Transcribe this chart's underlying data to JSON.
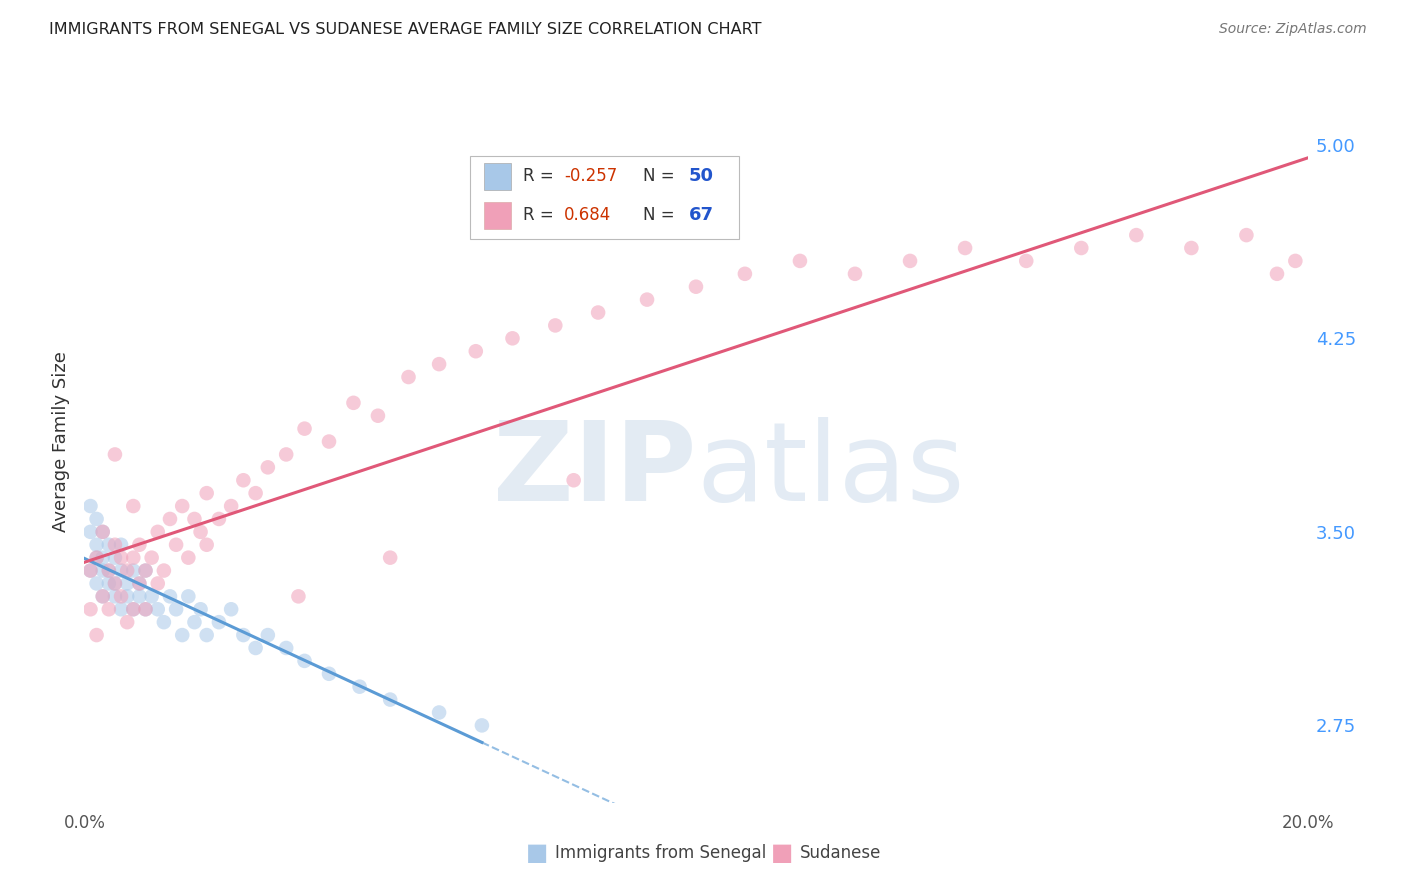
{
  "title": "IMMIGRANTS FROM SENEGAL VS SUDANESE AVERAGE FAMILY SIZE CORRELATION CHART",
  "source": "Source: ZipAtlas.com",
  "ylabel": "Average Family Size",
  "ytick_labels": [
    2.75,
    3.5,
    4.25,
    5.0
  ],
  "xlim": [
    0.0,
    0.2
  ],
  "ylim": [
    2.45,
    5.25
  ],
  "color_blue": "#a8c8e8",
  "color_pink": "#f0a0b8",
  "line_blue": "#5b9bd5",
  "line_pink": "#e05878",
  "background": "#ffffff",
  "grid_color": "#cccccc",
  "senegal_x": [
    0.001,
    0.001,
    0.001,
    0.002,
    0.002,
    0.002,
    0.002,
    0.003,
    0.003,
    0.003,
    0.003,
    0.004,
    0.004,
    0.004,
    0.005,
    0.005,
    0.005,
    0.006,
    0.006,
    0.006,
    0.007,
    0.007,
    0.008,
    0.008,
    0.009,
    0.009,
    0.01,
    0.01,
    0.011,
    0.012,
    0.013,
    0.014,
    0.015,
    0.016,
    0.017,
    0.018,
    0.019,
    0.02,
    0.022,
    0.024,
    0.026,
    0.028,
    0.03,
    0.033,
    0.036,
    0.04,
    0.045,
    0.05,
    0.058,
    0.065
  ],
  "senegal_y": [
    3.5,
    3.6,
    3.35,
    3.45,
    3.3,
    3.55,
    3.4,
    3.35,
    3.5,
    3.25,
    3.4,
    3.3,
    3.45,
    3.35,
    3.25,
    3.4,
    3.3,
    3.35,
    3.2,
    3.45,
    3.3,
    3.25,
    3.35,
    3.2,
    3.3,
    3.25,
    3.2,
    3.35,
    3.25,
    3.2,
    3.15,
    3.25,
    3.2,
    3.1,
    3.25,
    3.15,
    3.2,
    3.1,
    3.15,
    3.2,
    3.1,
    3.05,
    3.1,
    3.05,
    3.0,
    2.95,
    2.9,
    2.85,
    2.8,
    2.75
  ],
  "sudanese_x": [
    0.001,
    0.001,
    0.002,
    0.002,
    0.003,
    0.003,
    0.004,
    0.004,
    0.005,
    0.005,
    0.006,
    0.006,
    0.007,
    0.007,
    0.008,
    0.008,
    0.009,
    0.009,
    0.01,
    0.01,
    0.011,
    0.012,
    0.013,
    0.014,
    0.015,
    0.016,
    0.017,
    0.018,
    0.019,
    0.02,
    0.022,
    0.024,
    0.026,
    0.028,
    0.03,
    0.033,
    0.036,
    0.04,
    0.044,
    0.048,
    0.053,
    0.058,
    0.064,
    0.07,
    0.077,
    0.084,
    0.092,
    0.1,
    0.108,
    0.117,
    0.126,
    0.135,
    0.144,
    0.154,
    0.163,
    0.172,
    0.181,
    0.19,
    0.195,
    0.198,
    0.005,
    0.008,
    0.012,
    0.02,
    0.035,
    0.05,
    0.08
  ],
  "sudanese_y": [
    3.2,
    3.35,
    3.1,
    3.4,
    3.25,
    3.5,
    3.2,
    3.35,
    3.3,
    3.45,
    3.25,
    3.4,
    3.15,
    3.35,
    3.2,
    3.4,
    3.3,
    3.45,
    3.2,
    3.35,
    3.4,
    3.5,
    3.35,
    3.55,
    3.45,
    3.6,
    3.4,
    3.55,
    3.5,
    3.65,
    3.55,
    3.6,
    3.7,
    3.65,
    3.75,
    3.8,
    3.9,
    3.85,
    4.0,
    3.95,
    4.1,
    4.15,
    4.2,
    4.25,
    4.3,
    4.35,
    4.4,
    4.45,
    4.5,
    4.55,
    4.5,
    4.55,
    4.6,
    4.55,
    4.6,
    4.65,
    4.6,
    4.65,
    4.5,
    4.55,
    3.8,
    3.6,
    3.3,
    3.45,
    3.25,
    3.4,
    3.7
  ]
}
